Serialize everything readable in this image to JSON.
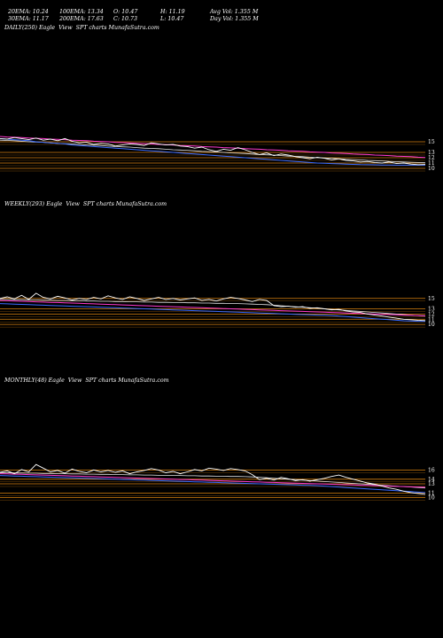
{
  "header": {
    "row1": [
      "20EMA: 10.24",
      "100EMA: 13.34",
      "O: 10.47",
      "H: 11.19",
      "Avg Vol: 1.355 M"
    ],
    "row2": [
      "30EMA: 11.17",
      "200EMA: 17.63",
      "C: 10.73",
      "L: 10.47",
      "Day Vol: 1.355 M"
    ]
  },
  "panels": [
    {
      "label": "DAILY(250) Eagle  View  SPT charts MunafaSutra.com",
      "ticks": [
        "15",
        "13",
        "12",
        "11",
        "10"
      ]
    },
    {
      "label": "WEEKLY(293) Eagle  View  SPT charts MunafaSutra.com",
      "ticks": [
        "15",
        "13",
        "12",
        "11",
        "10"
      ]
    },
    {
      "label": "MONTHLY(48) Eagle  View  SPT charts MunafaSutra.com",
      "ticks": [
        "16",
        "14",
        "13",
        "11",
        "10"
      ]
    }
  ],
  "chart_data": [
    {
      "type": "line",
      "panel": "DAILY",
      "ylim": [
        9,
        17
      ],
      "price": [
        15.6,
        15.5,
        15.8,
        15.6,
        15.4,
        15.7,
        15.3,
        15.5,
        15.2,
        15.6,
        15.1,
        14.8,
        14.9,
        14.5,
        14.7,
        14.6,
        14.2,
        14.4,
        14.6,
        14.5,
        14.3,
        14.8,
        14.6,
        14.4,
        14.5,
        14.2,
        14.1,
        13.8,
        14.0,
        13.5,
        13.2,
        13.6,
        13.4,
        13.9,
        13.5,
        13.0,
        12.6,
        12.9,
        12.4,
        12.7,
        12.5,
        12.2,
        12.0,
        11.8,
        12.1,
        11.9,
        11.6,
        11.8,
        11.5,
        11.4,
        11.2,
        11.3,
        11.1,
        11.0,
        11.2,
        10.9,
        11.0,
        10.8,
        10.7,
        10.73
      ],
      "ema_blue": [
        15.6,
        15.5,
        15.4,
        15.3,
        15.2,
        15.0,
        14.9,
        14.8,
        14.7,
        14.6,
        14.4,
        14.3,
        14.2,
        14.1,
        14.0,
        13.9,
        13.8,
        13.7,
        13.6,
        13.5,
        13.4,
        13.3,
        13.2,
        13.1,
        13.0,
        12.9,
        12.8,
        12.7,
        12.6,
        12.5,
        12.4,
        12.3,
        12.2,
        12.1,
        12.0,
        11.9,
        11.8,
        11.7,
        11.6,
        11.5,
        11.4,
        11.3,
        11.2,
        11.1,
        11.0,
        10.95,
        10.9,
        10.85,
        10.8,
        10.75,
        10.7,
        10.68,
        10.66,
        10.64,
        10.62,
        10.6,
        10.6,
        10.6,
        10.6,
        10.6
      ],
      "ema_pink": [
        16.0,
        15.9,
        15.85,
        15.8,
        15.7,
        15.65,
        15.6,
        15.5,
        15.45,
        15.4,
        15.3,
        15.25,
        15.2,
        15.1,
        15.05,
        15.0,
        14.9,
        14.85,
        14.8,
        14.7,
        14.65,
        14.6,
        14.5,
        14.45,
        14.4,
        14.3,
        14.25,
        14.2,
        14.1,
        14.05,
        14.0,
        13.9,
        13.85,
        13.8,
        13.7,
        13.65,
        13.6,
        13.5,
        13.45,
        13.4,
        13.3,
        13.25,
        13.2,
        13.1,
        13.05,
        13.0,
        12.9,
        12.85,
        12.8,
        12.7,
        12.65,
        12.6,
        12.5,
        12.45,
        12.4,
        12.3,
        12.25,
        12.2,
        12.1,
        12.05
      ],
      "ema_white": [
        15.3,
        15.25,
        15.2,
        15.1,
        15.0,
        14.95,
        14.9,
        14.8,
        14.7,
        14.65,
        14.6,
        14.5,
        14.4,
        14.35,
        14.3,
        14.2,
        14.1,
        14.05,
        14.0,
        13.9,
        13.8,
        13.75,
        13.7,
        13.6,
        13.5,
        13.45,
        13.4,
        13.3,
        13.2,
        13.15,
        13.1,
        13.0,
        12.9,
        12.85,
        12.8,
        12.7,
        12.6,
        12.55,
        12.5,
        12.4,
        12.3,
        12.25,
        12.2,
        12.1,
        12.0,
        11.95,
        11.9,
        11.8,
        11.7,
        11.65,
        11.6,
        11.5,
        11.45,
        11.4,
        11.3,
        11.25,
        11.2,
        11.15,
        11.1,
        11.05
      ],
      "levels": [
        15,
        13,
        12,
        11,
        10
      ]
    },
    {
      "type": "line",
      "panel": "WEEKLY",
      "ylim": [
        9,
        17
      ],
      "price": [
        15.0,
        15.3,
        14.9,
        15.6,
        14.8,
        16.0,
        15.2,
        14.9,
        15.4,
        15.1,
        14.7,
        15.0,
        14.8,
        15.2,
        14.9,
        15.5,
        15.1,
        14.8,
        15.3,
        15.0,
        14.6,
        14.9,
        15.2,
        14.8,
        15.0,
        14.7,
        14.9,
        15.1,
        14.6,
        14.8,
        14.5,
        14.9,
        15.2,
        15.0,
        14.7,
        14.4,
        14.8,
        14.6,
        13.6,
        13.4,
        13.5,
        13.3,
        13.4,
        13.1,
        13.2,
        13.0,
        12.8,
        12.9,
        12.6,
        12.4,
        12.3,
        12.0,
        11.8,
        11.6,
        11.4,
        11.2,
        11.0,
        10.9,
        10.8,
        10.73
      ],
      "ema_blue": [
        14.0,
        13.95,
        13.9,
        13.85,
        13.8,
        13.75,
        13.7,
        13.65,
        13.6,
        13.55,
        13.5,
        13.45,
        13.4,
        13.35,
        13.3,
        13.25,
        13.2,
        13.15,
        13.1,
        13.05,
        13.0,
        12.95,
        12.9,
        12.85,
        12.8,
        12.75,
        12.7,
        12.65,
        12.6,
        12.55,
        12.5,
        12.45,
        12.4,
        12.35,
        12.3,
        12.25,
        12.2,
        12.15,
        12.1,
        12.05,
        12.0,
        11.95,
        11.9,
        11.85,
        11.8,
        11.75,
        11.7,
        11.6,
        11.5,
        11.4,
        11.3,
        11.2,
        11.1,
        11.0,
        10.9,
        10.8,
        10.7,
        10.65,
        10.6,
        10.6
      ],
      "ema_pink": [
        14.6,
        14.55,
        14.5,
        14.45,
        14.4,
        14.35,
        14.3,
        14.25,
        14.2,
        14.15,
        14.1,
        14.05,
        14.0,
        13.95,
        13.9,
        13.85,
        13.8,
        13.75,
        13.7,
        13.65,
        13.6,
        13.55,
        13.5,
        13.45,
        13.4,
        13.35,
        13.3,
        13.25,
        13.2,
        13.15,
        13.1,
        13.05,
        13.0,
        12.95,
        12.9,
        12.85,
        12.8,
        12.75,
        12.7,
        12.65,
        12.6,
        12.55,
        12.5,
        12.45,
        12.4,
        12.35,
        12.3,
        12.25,
        12.2,
        12.15,
        12.1,
        12.05,
        12.0,
        11.95,
        11.9,
        11.85,
        11.8,
        11.75,
        11.7,
        11.65
      ],
      "ema_white": [
        14.8,
        14.8,
        14.75,
        14.75,
        14.7,
        14.7,
        14.65,
        14.65,
        14.6,
        14.6,
        14.55,
        14.55,
        14.5,
        14.5,
        14.45,
        14.45,
        14.4,
        14.4,
        14.35,
        14.35,
        14.3,
        14.3,
        14.25,
        14.25,
        14.2,
        14.2,
        14.15,
        14.15,
        14.1,
        14.1,
        14.05,
        14.05,
        14.0,
        14.0,
        13.95,
        13.9,
        13.85,
        13.8,
        13.7,
        13.6,
        13.5,
        13.4,
        13.3,
        13.2,
        13.1,
        13.0,
        12.9,
        12.8,
        12.7,
        12.6,
        12.5,
        12.4,
        12.3,
        12.2,
        12.1,
        12.0,
        11.9,
        11.8,
        11.7,
        11.6
      ],
      "levels": [
        15,
        13,
        12,
        11,
        10
      ]
    },
    {
      "type": "line",
      "panel": "MONTHLY",
      "ylim": [
        8,
        18
      ],
      "price": [
        15.5,
        15.8,
        15.2,
        16.1,
        15.6,
        17.2,
        16.4,
        15.6,
        15.9,
        15.3,
        16.2,
        15.7,
        15.4,
        16.0,
        15.6,
        15.9,
        15.5,
        15.8,
        15.2,
        15.6,
        15.9,
        16.3,
        16.0,
        15.4,
        15.7,
        15.2,
        15.6,
        16.1,
        15.8,
        16.4,
        16.2,
        15.9,
        16.3,
        16.1,
        15.8,
        15.0,
        13.9,
        14.2,
        13.8,
        14.4,
        14.1,
        13.7,
        13.9,
        13.6,
        13.9,
        14.2,
        14.6,
        14.9,
        14.4,
        14.0,
        13.6,
        13.2,
        12.9,
        12.5,
        12.1,
        11.8,
        11.4,
        11.1,
        10.9,
        10.73
      ],
      "ema_blue": [
        14.8,
        14.75,
        14.7,
        14.65,
        14.6,
        14.55,
        14.5,
        14.45,
        14.4,
        14.35,
        14.3,
        14.25,
        14.2,
        14.15,
        14.1,
        14.05,
        14.0,
        13.95,
        13.9,
        13.85,
        13.8,
        13.75,
        13.7,
        13.65,
        13.6,
        13.55,
        13.5,
        13.45,
        13.4,
        13.35,
        13.3,
        13.25,
        13.2,
        13.15,
        13.1,
        13.05,
        13.0,
        12.95,
        12.9,
        12.85,
        12.8,
        12.75,
        12.7,
        12.65,
        12.6,
        12.5,
        12.4,
        12.3,
        12.2,
        12.1,
        12.0,
        11.9,
        11.8,
        11.7,
        11.6,
        11.5,
        11.4,
        11.3,
        11.2,
        11.1
      ],
      "ema_pink": [
        15.2,
        15.15,
        15.1,
        15.05,
        15.0,
        14.95,
        14.9,
        14.85,
        14.8,
        14.75,
        14.7,
        14.65,
        14.6,
        14.55,
        14.5,
        14.45,
        14.4,
        14.35,
        14.3,
        14.25,
        14.2,
        14.15,
        14.1,
        14.05,
        14.0,
        13.95,
        13.9,
        13.85,
        13.8,
        13.75,
        13.7,
        13.65,
        13.6,
        13.55,
        13.5,
        13.45,
        13.4,
        13.35,
        13.3,
        13.25,
        13.2,
        13.15,
        13.1,
        13.05,
        13.0,
        12.95,
        12.9,
        12.85,
        12.8,
        12.75,
        12.7,
        12.65,
        12.6,
        12.55,
        12.5,
        12.45,
        12.4,
        12.35,
        12.3,
        12.25
      ],
      "ema_white": [
        15.4,
        15.4,
        15.35,
        15.35,
        15.3,
        15.3,
        15.25,
        15.25,
        15.2,
        15.2,
        15.15,
        15.15,
        15.1,
        15.1,
        15.05,
        15.05,
        15.0,
        15.0,
        14.95,
        14.95,
        14.9,
        14.9,
        14.85,
        14.85,
        14.8,
        14.8,
        14.75,
        14.75,
        14.7,
        14.7,
        14.65,
        14.65,
        14.6,
        14.6,
        14.55,
        14.5,
        14.4,
        14.3,
        14.2,
        14.1,
        14.0,
        13.9,
        13.8,
        13.7,
        13.6,
        13.5,
        13.4,
        13.3,
        13.2,
        13.1,
        13.0,
        12.9,
        12.8,
        12.7,
        12.6,
        12.5,
        12.4,
        12.3,
        12.2,
        12.1
      ],
      "levels": [
        16,
        14,
        13,
        11,
        10
      ]
    }
  ],
  "colors": {
    "background": "#000000",
    "price": "#ffffff",
    "ema_blue": "#3a6bff",
    "ema_pink": "#ff3ad0",
    "ema_white": "#e6e6e6",
    "level": "#d9820f"
  }
}
